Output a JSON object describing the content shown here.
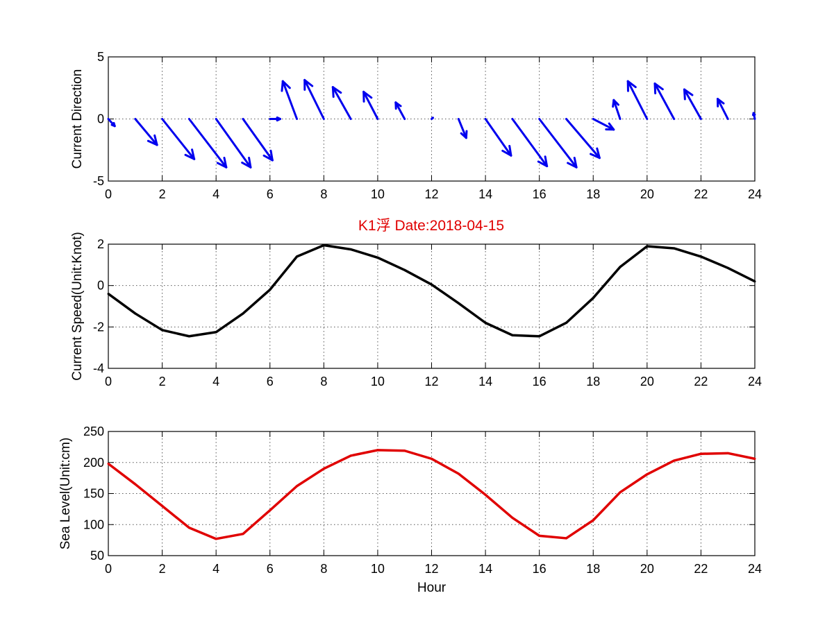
{
  "figure": {
    "title": "K1浮    Date:2018-04-15",
    "title_color": "#e00000"
  },
  "chart_data": [
    {
      "type": "quiver",
      "ylabel": "Current Direction",
      "xlabel": "",
      "xlim": [
        0,
        24
      ],
      "ylim": [
        -5,
        5
      ],
      "xticks": [
        0,
        2,
        4,
        6,
        8,
        10,
        12,
        14,
        16,
        18,
        20,
        22,
        24
      ],
      "yticks": [
        -5,
        0,
        5
      ],
      "grid": true,
      "color": "#0000ee",
      "x": [
        0,
        1,
        2,
        3,
        4,
        5,
        6,
        7,
        8,
        9,
        10,
        11,
        12,
        13,
        14,
        15,
        16,
        17,
        18,
        19,
        20,
        21,
        22,
        23,
        24
      ],
      "u": [
        0.25,
        0.85,
        1.25,
        1.45,
        1.35,
        1.15,
        0.4,
        -0.55,
        -0.75,
        -0.7,
        -0.55,
        -0.35,
        0.05,
        0.3,
        1.0,
        1.35,
        1.45,
        1.3,
        0.8,
        -0.25,
        -0.75,
        -0.75,
        -0.65,
        -0.4,
        -0.05
      ],
      "v": [
        -0.6,
        -2.2,
        -3.4,
        -4.1,
        -4.1,
        -3.5,
        0.0,
        3.2,
        3.3,
        2.7,
        2.3,
        1.4,
        0.1,
        -1.6,
        -3.1,
        -4.0,
        -4.1,
        -3.3,
        -0.9,
        1.6,
        3.2,
        3.0,
        2.5,
        1.7,
        0.5
      ]
    },
    {
      "type": "line",
      "ylabel": "Current Speed(Unit:Knot)",
      "xlabel": "",
      "xlim": [
        0,
        24
      ],
      "ylim": [
        -4,
        2
      ],
      "xticks": [
        0,
        2,
        4,
        6,
        8,
        10,
        12,
        14,
        16,
        18,
        20,
        22,
        24
      ],
      "yticks": [
        -4,
        -2,
        0,
        2
      ],
      "grid": true,
      "series": [
        {
          "color": "#000000",
          "x": [
            0,
            1,
            2,
            3,
            4,
            5,
            6,
            7,
            8,
            9,
            10,
            11,
            12,
            13,
            14,
            15,
            16,
            17,
            18,
            19,
            20,
            21,
            22,
            23,
            24
          ],
          "values": [
            -0.4,
            -1.35,
            -2.15,
            -2.45,
            -2.25,
            -1.35,
            -0.2,
            1.4,
            1.95,
            1.75,
            1.35,
            0.75,
            0.05,
            -0.85,
            -1.8,
            -2.4,
            -2.45,
            -1.8,
            -0.6,
            0.9,
            1.9,
            1.8,
            1.4,
            0.85,
            0.2
          ]
        }
      ]
    },
    {
      "type": "line",
      "ylabel": "Sea Level(Unit:cm)",
      "xlabel": "Hour",
      "xlim": [
        0,
        24
      ],
      "ylim": [
        50,
        250
      ],
      "xticks": [
        0,
        2,
        4,
        6,
        8,
        10,
        12,
        14,
        16,
        18,
        20,
        22,
        24
      ],
      "yticks": [
        50,
        100,
        150,
        200,
        250
      ],
      "grid": true,
      "series": [
        {
          "color": "#e00000",
          "x": [
            0,
            1,
            2,
            3,
            4,
            5,
            6,
            7,
            8,
            9,
            10,
            11,
            12,
            13,
            14,
            15,
            16,
            17,
            18,
            19,
            20,
            21,
            22,
            23,
            24
          ],
          "values": [
            198,
            165,
            130,
            95,
            77,
            85,
            123,
            162,
            190,
            211,
            220,
            219,
            206,
            182,
            148,
            111,
            82,
            78,
            107,
            152,
            181,
            203,
            214,
            215,
            206
          ]
        }
      ]
    }
  ]
}
